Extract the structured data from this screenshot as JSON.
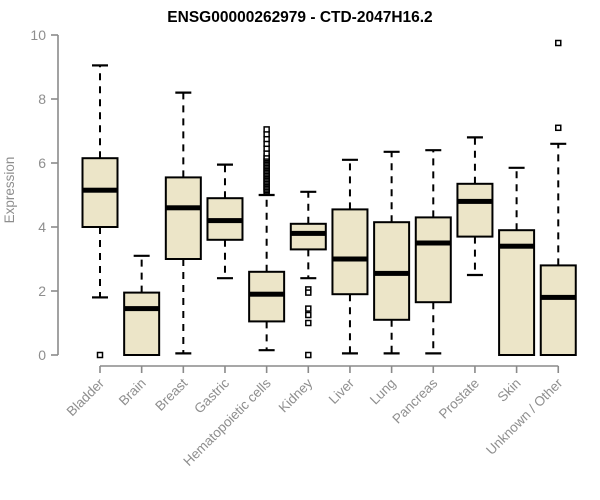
{
  "chart_data": {
    "type": "boxplot",
    "title": "ENSG00000262979 - CTD-2047H16.2",
    "ylabel": "Expression",
    "xlabel": "",
    "ylim": [
      0,
      10
    ],
    "yticks": [
      "0",
      "2",
      "4",
      "6",
      "8",
      "10"
    ],
    "grid": false,
    "legend": "none",
    "categories": [
      "Bladder",
      "Brain",
      "Breast",
      "Gastric",
      "Hematopoietic cells",
      "Kidney",
      "Liver",
      "Lung",
      "Pancreas",
      "Prostate",
      "Skin",
      "Unknown / Other"
    ],
    "series": [
      {
        "name": "Bladder",
        "whisker_low": 1.8,
        "q1": 4.0,
        "median": 5.15,
        "q3": 6.15,
        "whisker_high": 9.05,
        "outliers": [
          0
        ]
      },
      {
        "name": "Brain",
        "whisker_low": 0,
        "q1": 0,
        "median": 1.45,
        "q3": 1.95,
        "whisker_high": 3.1,
        "outliers": []
      },
      {
        "name": "Breast",
        "whisker_low": 0.05,
        "q1": 3.0,
        "median": 4.6,
        "q3": 5.55,
        "whisker_high": 8.2,
        "outliers": []
      },
      {
        "name": "Gastric",
        "whisker_low": 2.4,
        "q1": 3.6,
        "median": 4.2,
        "q3": 4.9,
        "whisker_high": 5.95,
        "outliers": []
      },
      {
        "name": "Hematopoietic cells",
        "whisker_low": 0.15,
        "q1": 1.05,
        "median": 1.9,
        "q3": 2.6,
        "whisker_high": 5.0,
        "outliers": [
          5.1,
          5.15,
          5.2,
          5.25,
          5.3,
          5.35,
          5.4,
          5.45,
          5.5,
          5.55,
          5.6,
          5.65,
          5.7,
          5.75,
          5.8,
          5.85,
          5.9,
          5.95,
          6.0,
          6.05,
          6.1,
          6.15,
          6.2,
          6.3,
          6.45,
          6.6,
          6.75,
          6.9,
          7.05
        ]
      },
      {
        "name": "Kidney",
        "whisker_low": 2.4,
        "q1": 3.3,
        "median": 3.8,
        "q3": 4.1,
        "whisker_high": 5.1,
        "outliers": [
          2.05,
          1.95,
          1.45,
          1.25,
          1.0,
          0
        ]
      },
      {
        "name": "Liver",
        "whisker_low": 0.05,
        "q1": 1.9,
        "median": 3.0,
        "q3": 4.55,
        "whisker_high": 6.1,
        "outliers": []
      },
      {
        "name": "Lung",
        "whisker_low": 0.05,
        "q1": 1.1,
        "median": 2.55,
        "q3": 4.15,
        "whisker_high": 6.35,
        "outliers": []
      },
      {
        "name": "Pancreas",
        "whisker_low": 0.05,
        "q1": 1.65,
        "median": 3.5,
        "q3": 4.3,
        "whisker_high": 6.4,
        "outliers": []
      },
      {
        "name": "Prostate",
        "whisker_low": 2.5,
        "q1": 3.7,
        "median": 4.8,
        "q3": 5.35,
        "whisker_high": 6.8,
        "outliers": []
      },
      {
        "name": "Skin",
        "whisker_low": 0,
        "q1": 0,
        "median": 3.4,
        "q3": 3.9,
        "whisker_high": 5.85,
        "outliers": []
      },
      {
        "name": "Unknown / Other",
        "whisker_low": 0,
        "q1": 0,
        "median": 1.8,
        "q3": 2.8,
        "whisker_high": 6.6,
        "outliers": [
          7.1,
          9.75
        ]
      }
    ],
    "colors": {
      "box_fill": "#ece5c8",
      "box_border": "#000000",
      "median": "#000000",
      "whisker": "#000000",
      "outlier_stroke": "#000000",
      "outlier_fill": "#ffffff",
      "axis": "#8a8a8a",
      "tick_text": "#8e8e8e",
      "title_text": "#000000",
      "background": "#ffffff"
    }
  }
}
